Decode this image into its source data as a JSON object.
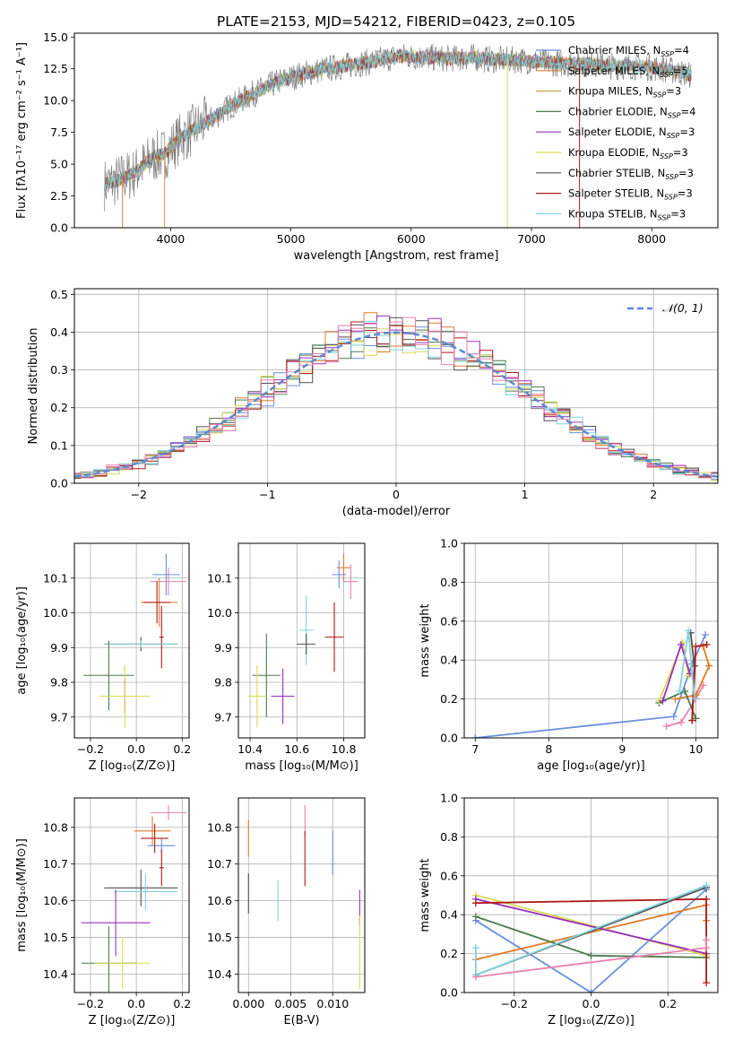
{
  "figure_title": "PLATE=2153, MJD=54212, FIBERID=0423, z=0.105",
  "colors": {
    "chabrier_miles": "#6a8fdc",
    "salpeter_miles": "#e07b28",
    "kroupa_miles": "#c8a050",
    "chabrier_elodie": "#4c7a4c",
    "salpeter_elodie": "#9b2fbf",
    "kroupa_elodie": "#d8dc50",
    "chabrier_stelib": "#505050",
    "salpeter_stelib": "#b01818",
    "kroupa_stelib": "#7fd3dc",
    "pink": "#e880b0",
    "normal": "#5b8bd0",
    "grid": "#b0b0b0"
  },
  "chart_data": [
    {
      "id": "spectrum",
      "type": "line",
      "xlabel": "wavelength [Angstrom, rest frame]",
      "ylabel": "Flux [fλ10⁻¹⁷ erg cm⁻² s⁻¹ A⁻¹]",
      "xlim": [
        3200,
        8550
      ],
      "ylim": [
        0,
        15.3
      ],
      "xticks": [
        4000,
        5000,
        6000,
        7000,
        8000
      ],
      "yticks": [
        0.0,
        2.5,
        5.0,
        7.5,
        10.0,
        12.5,
        15.0
      ],
      "ytick_labels": [
        "0.0",
        "2.5",
        "5.0",
        "7.5",
        "10.0",
        "12.5",
        "15.0"
      ],
      "grid": false,
      "legend": "right",
      "legend_entries": [
        {
          "label": "Chabrier MILES, N",
          "sub": "SSP",
          "suffix": "=4",
          "color": "#6a8fdc"
        },
        {
          "label": "Salpeter MILES, N",
          "sub": "SSP",
          "suffix": "=5",
          "color": "#e07b28"
        },
        {
          "label": "Kroupa MILES, N",
          "sub": "SSP",
          "suffix": "=3",
          "color": "#c8a050"
        },
        {
          "label": "Chabrier ELODIE, N",
          "sub": "SSP",
          "suffix": "=4",
          "color": "#4c7a4c"
        },
        {
          "label": "Salpeter ELODIE, N",
          "sub": "SSP",
          "suffix": "=3",
          "color": "#9b2fbf"
        },
        {
          "label": "Kroupa ELODIE, N",
          "sub": "SSP",
          "suffix": "=3",
          "color": "#d8dc50"
        },
        {
          "label": "Chabrier STELIB, N",
          "sub": "SSP",
          "suffix": "=3",
          "color": "#505050"
        },
        {
          "label": "Salpeter STELIB, N",
          "sub": "SSP",
          "suffix": "=3",
          "color": "#b01818"
        },
        {
          "label": "Kroupa STELIB, N",
          "sub": "SSP",
          "suffix": "=3",
          "color": "#7fd3dc"
        }
      ],
      "continuum": {
        "x": [
          3450,
          3550,
          3700,
          3850,
          3950,
          4050,
          4200,
          4350,
          4500,
          4700,
          4900,
          5100,
          5300,
          5500,
          5700,
          5900,
          6100,
          6300,
          6500,
          6700,
          6900,
          7100,
          7300,
          7500,
          7700,
          7900,
          8100,
          8330
        ],
        "y": [
          3.4,
          3.7,
          4.3,
          5.5,
          5.8,
          6.8,
          7.8,
          8.6,
          9.6,
          10.6,
          11.5,
          12.1,
          12.5,
          12.8,
          13.1,
          13.5,
          13.4,
          13.3,
          13.4,
          13.2,
          13.2,
          13.0,
          12.9,
          12.9,
          12.7,
          12.7,
          12.5,
          12.0
        ]
      }
    },
    {
      "id": "residuals",
      "type": "histogram",
      "xlabel": "(data-model)/error",
      "ylabel": "Normed distribution",
      "xlim": [
        -2.5,
        2.5
      ],
      "ylim": [
        0,
        0.515
      ],
      "xticks": [
        -2,
        -1,
        0,
        1,
        2
      ],
      "xtick_labels": [
        "−2",
        "−1",
        "0",
        "1",
        "2"
      ],
      "yticks": [
        0.0,
        0.1,
        0.2,
        0.3,
        0.4,
        0.5
      ],
      "ytick_labels": [
        "0.0",
        "0.1",
        "0.2",
        "0.3",
        "0.4",
        "0.5"
      ],
      "grid": true,
      "legend": "top-right",
      "legend_label": "𝒩(0, 1)",
      "bin_width": 0.1
    },
    {
      "id": "z_age",
      "type": "scatter",
      "xlabel": "Z [log₁₀(Z/Z⊙)]",
      "ylabel": "age  [log₁₀(age/yr)]",
      "xlim": [
        -0.27,
        0.23
      ],
      "ylim": [
        9.64,
        10.2
      ],
      "xticks": [
        -0.2,
        0.0,
        0.2
      ],
      "xtick_labels": [
        "−0.2",
        "0.0",
        "0.2"
      ],
      "yticks": [
        9.7,
        9.8,
        9.9,
        10.0,
        10.1
      ],
      "ytick_labels": [
        "9.7",
        "9.8",
        "9.9",
        "10.0",
        "10.1"
      ],
      "grid": true,
      "points": [
        {
          "x": 0.1,
          "xerr": 0.08,
          "y": 10.03,
          "yerr": 0.07,
          "color": "#e07b28"
        },
        {
          "x": 0.13,
          "xerr": 0.06,
          "y": 10.11,
          "yerr": 0.06,
          "color": "#6a8fdc"
        },
        {
          "x": 0.14,
          "xerr": 0.08,
          "y": 10.09,
          "yerr": 0.04,
          "color": "#e880b0"
        },
        {
          "x": 0.09,
          "xerr": 0.06,
          "y": 10.03,
          "yerr": 0.06,
          "color": "#b01818"
        },
        {
          "x": 0.11,
          "xerr": 0.01,
          "y": 9.93,
          "yerr": 0.09,
          "color": "#b01818"
        },
        {
          "x": 0.02,
          "xerr": 0.16,
          "y": 9.91,
          "yerr": 0.02,
          "color": "#505050"
        },
        {
          "x": 0.02,
          "xerr": 0.16,
          "y": 9.91,
          "yerr": 0.01,
          "color": "#7fd3dc"
        },
        {
          "x": -0.12,
          "xerr": 0.11,
          "y": 9.82,
          "yerr": 0.1,
          "color": "#4c7a4c"
        },
        {
          "x": -0.05,
          "xerr": 0.1,
          "y": 9.76,
          "yerr": 0.05,
          "color": "#9b2fbf"
        },
        {
          "x": -0.05,
          "xerr": 0.11,
          "y": 9.76,
          "yerr": 0.09,
          "color": "#d8dc50"
        }
      ]
    },
    {
      "id": "mass_age",
      "type": "scatter",
      "xlabel": "mass [log₁₀(M/M⊙)]",
      "ylabel": "",
      "xlim": [
        10.35,
        10.89
      ],
      "ylim": [
        9.64,
        10.2
      ],
      "xticks": [
        10.4,
        10.6,
        10.8
      ],
      "xtick_labels": [
        "10.4",
        "10.6",
        "10.8"
      ],
      "yticks": [
        9.7,
        9.8,
        9.9,
        10.0,
        10.1
      ],
      "ytick_labels": [
        "9.7",
        "9.8",
        "9.9",
        "10.0",
        "10.1"
      ],
      "grid": true,
      "points": [
        {
          "x": 10.8,
          "xerr": 0.03,
          "y": 10.13,
          "yerr": 0.04,
          "color": "#e07b28"
        },
        {
          "x": 10.78,
          "xerr": 0.03,
          "y": 10.11,
          "yerr": 0.04,
          "color": "#6a8fdc"
        },
        {
          "x": 10.83,
          "xerr": 0.03,
          "y": 10.09,
          "yerr": 0.05,
          "color": "#e880b0"
        },
        {
          "x": 10.76,
          "xerr": 0.04,
          "y": 9.93,
          "yerr": 0.1,
          "color": "#b01818"
        },
        {
          "x": 10.64,
          "xerr": 0.03,
          "y": 9.95,
          "yerr": 0.1,
          "color": "#7fd3dc"
        },
        {
          "x": 10.64,
          "xerr": 0.04,
          "y": 9.91,
          "yerr": 0.03,
          "color": "#505050"
        },
        {
          "x": 10.47,
          "xerr": 0.06,
          "y": 9.82,
          "yerr": 0.12,
          "color": "#4c7a4c"
        },
        {
          "x": 10.54,
          "xerr": 0.05,
          "y": 9.76,
          "yerr": 0.08,
          "color": "#9b2fbf"
        },
        {
          "x": 10.43,
          "xerr": 0.04,
          "y": 9.76,
          "yerr": 0.09,
          "color": "#d8dc50"
        }
      ]
    },
    {
      "id": "age_weight",
      "type": "line",
      "xlabel": "age  [log₁₀(age/yr)]",
      "ylabel": "mass weight",
      "xlim": [
        6.85,
        10.3
      ],
      "ylim": [
        0,
        1
      ],
      "xticks": [
        7,
        8,
        9,
        10
      ],
      "xtick_labels": [
        "7",
        "8",
        "9",
        "10"
      ],
      "yticks": [
        0,
        0.2,
        0.4,
        0.6,
        0.8,
        1.0
      ],
      "ytick_labels": [
        "0.0",
        "0.2",
        "0.4",
        "0.6",
        "0.8",
        "1.0"
      ],
      "grid": true,
      "series": [
        {
          "color": "#6a8fdc",
          "x": [
            7.0,
            9.7,
            9.95,
            10.13
          ],
          "y": [
            0.0,
            0.11,
            0.38,
            0.53
          ]
        },
        {
          "color": "#e880b0",
          "x": [
            9.6,
            9.8,
            10.0,
            10.1
          ],
          "y": [
            0.06,
            0.08,
            0.2,
            0.27
          ]
        },
        {
          "color": "#e07b28",
          "x": [
            9.72,
            10.0,
            10.18,
            10.1
          ],
          "y": [
            0.2,
            0.22,
            0.37,
            0.47
          ]
        },
        {
          "color": "#4c7a4c",
          "x": [
            9.5,
            9.85,
            10.0
          ],
          "y": [
            0.18,
            0.24,
            0.1
          ]
        },
        {
          "color": "#d8dc50",
          "x": [
            9.5,
            9.82,
            9.9
          ],
          "y": [
            0.19,
            0.49,
            0.32
          ]
        },
        {
          "color": "#9b2fbf",
          "x": [
            9.55,
            9.8,
            9.92
          ],
          "y": [
            0.19,
            0.48,
            0.33
          ]
        },
        {
          "color": "#505050",
          "x": [
            9.95,
            9.98,
            9.93
          ],
          "y": [
            0.09,
            0.37,
            0.54
          ]
        },
        {
          "color": "#b01818",
          "x": [
            9.95,
            10.0,
            10.15
          ],
          "y": [
            0.09,
            0.47,
            0.48
          ]
        },
        {
          "color": "#7fd3dc",
          "x": [
            9.78,
            9.9,
            9.98
          ],
          "y": [
            0.24,
            0.55,
            0.2
          ]
        }
      ]
    },
    {
      "id": "z_mass",
      "type": "scatter",
      "xlabel": "Z [log₁₀(Z/Z⊙)]",
      "ylabel": "mass [log₁₀(M/M⊙)]",
      "xlim": [
        -0.27,
        0.23
      ],
      "ylim": [
        10.35,
        10.88
      ],
      "xticks": [
        -0.2,
        0.0,
        0.2
      ],
      "xtick_labels": [
        "−0.2",
        "0.0",
        "0.2"
      ],
      "yticks": [
        10.4,
        10.5,
        10.6,
        10.7,
        10.8
      ],
      "ytick_labels": [
        "10.4",
        "10.5",
        "10.6",
        "10.7",
        "10.8"
      ],
      "grid": true,
      "points": [
        {
          "x": 0.14,
          "xerr": 0.08,
          "y": 10.84,
          "yerr": 0.02,
          "color": "#e880b0"
        },
        {
          "x": 0.07,
          "xerr": 0.08,
          "y": 10.79,
          "yerr": 0.04,
          "color": "#e07b28"
        },
        {
          "x": 0.11,
          "xerr": 0.06,
          "y": 10.75,
          "yerr": 0.02,
          "color": "#6a8fdc"
        },
        {
          "x": 0.08,
          "xerr": 0.06,
          "y": 10.77,
          "yerr": 0.04,
          "color": "#b01818"
        },
        {
          "x": 0.11,
          "xerr": 0.01,
          "y": 10.69,
          "yerr": 0.05,
          "color": "#b01818"
        },
        {
          "x": 0.02,
          "xerr": 0.16,
          "y": 10.635,
          "yerr": 0.05,
          "color": "#505050"
        },
        {
          "x": 0.04,
          "xerr": 0.14,
          "y": 10.625,
          "yerr": 0.05,
          "color": "#7fd3dc"
        },
        {
          "x": -0.09,
          "xerr": 0.15,
          "y": 10.54,
          "yerr": 0.09,
          "color": "#9b2fbf"
        },
        {
          "x": -0.12,
          "xerr": 0.12,
          "y": 10.43,
          "yerr": 0.1,
          "color": "#4c7a4c"
        },
        {
          "x": -0.06,
          "xerr": 0.12,
          "y": 10.43,
          "yerr": 0.07,
          "color": "#d8dc50"
        }
      ]
    },
    {
      "id": "ebv_mass",
      "type": "scatter",
      "xlabel": "E(B-V)",
      "ylabel": "",
      "xlim": [
        -0.0012,
        0.0138
      ],
      "ylim": [
        10.35,
        10.88
      ],
      "xticks": [
        0.0,
        0.005,
        0.01
      ],
      "xtick_labels": [
        "0.000",
        "0.005",
        "0.010"
      ],
      "yticks": [
        10.4,
        10.5,
        10.6,
        10.7,
        10.8
      ],
      "ytick_labels": [
        "10.4",
        "10.5",
        "10.6",
        "10.7",
        "10.8"
      ],
      "grid": true,
      "points": [
        {
          "x": 0.0,
          "y": 10.77,
          "yerr": 0.05,
          "color": "#e07b28"
        },
        {
          "x": 0.0,
          "y": 10.62,
          "yerr": 0.055,
          "color": "#505050"
        },
        {
          "x": 0.0035,
          "y": 10.6,
          "yerr": 0.055,
          "color": "#7fd3dc"
        },
        {
          "x": 0.0067,
          "y": 10.82,
          "yerr": 0.04,
          "color": "#e880b0"
        },
        {
          "x": 0.0067,
          "y": 10.715,
          "yerr": 0.075,
          "color": "#b01818"
        },
        {
          "x": 0.01,
          "y": 10.73,
          "yerr": 0.06,
          "color": "#6a8fdc"
        },
        {
          "x": 0.0132,
          "y": 10.58,
          "yerr": 0.05,
          "color": "#9b2fbf"
        },
        {
          "x": 0.0132,
          "y": 10.46,
          "yerr": 0.1,
          "color": "#d8dc50"
        }
      ]
    },
    {
      "id": "z_weight",
      "type": "line",
      "xlabel": "Z [log₁₀(Z/Z⊙)]",
      "ylabel": "mass weight",
      "xlim": [
        -0.33,
        0.33
      ],
      "ylim": [
        0,
        1
      ],
      "xticks": [
        -0.2,
        0.0,
        0.2
      ],
      "xtick_labels": [
        "−0.2",
        "0.0",
        "0.2"
      ],
      "yticks": [
        0,
        0.2,
        0.4,
        0.6,
        0.8,
        1.0
      ],
      "ytick_labels": [
        "0.0",
        "0.2",
        "0.4",
        "0.6",
        "0.8",
        "1.0"
      ],
      "grid": true,
      "series": [
        {
          "color": "#6a8fdc",
          "x": [
            -0.3,
            0.0,
            0.3
          ],
          "y": [
            0.37,
            0.0,
            0.53
          ]
        },
        {
          "color": "#e07b28",
          "x": [
            -0.3,
            0.3,
            0.3
          ],
          "y": [
            0.17,
            0.45,
            0.37
          ]
        },
        {
          "color": "#4c7a4c",
          "x": [
            -0.3,
            0.0,
            0.3
          ],
          "y": [
            0.39,
            0.19,
            0.18
          ]
        },
        {
          "color": "#d8dc50",
          "x": [
            -0.3,
            0.3
          ],
          "y": [
            0.5,
            0.19
          ]
        },
        {
          "color": "#9b2fbf",
          "x": [
            -0.3,
            0.3
          ],
          "y": [
            0.48,
            0.2
          ]
        },
        {
          "color": "#505050",
          "x": [
            -0.3,
            0.3
          ],
          "y": [
            0.09,
            0.54
          ]
        },
        {
          "color": "#b01818",
          "x": [
            -0.3,
            0.3,
            0.3
          ],
          "y": [
            0.46,
            0.48,
            0.05
          ]
        },
        {
          "color": "#7fd3dc",
          "x": [
            -0.3,
            -0.3,
            0.3
          ],
          "y": [
            0.23,
            0.09,
            0.55
          ]
        },
        {
          "color": "#e880b0",
          "x": [
            -0.3,
            0.3,
            0.3
          ],
          "y": [
            0.08,
            0.23,
            0.27
          ]
        }
      ]
    }
  ]
}
